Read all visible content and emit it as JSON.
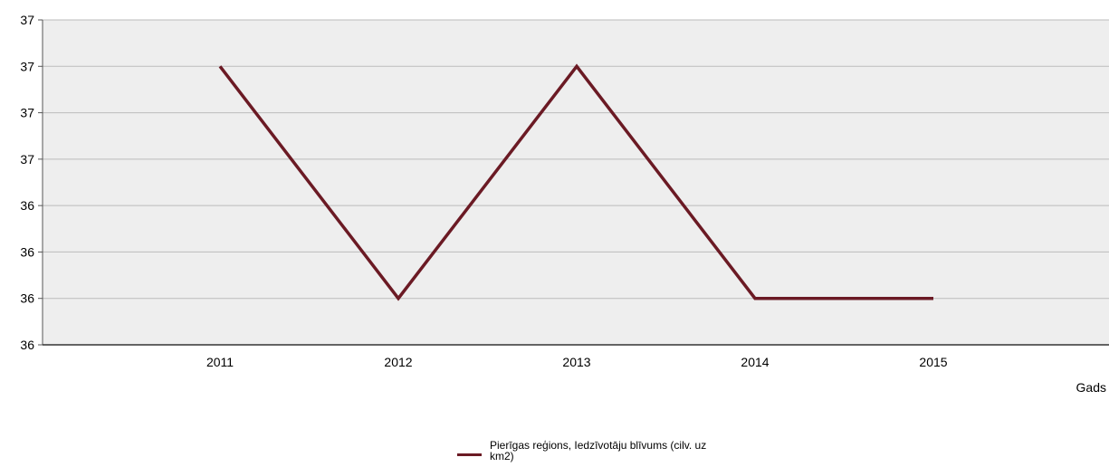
{
  "chart_data": {
    "type": "line",
    "x": [
      "2011",
      "2012",
      "2013",
      "2014",
      "2015"
    ],
    "series": [
      {
        "name": "Pierīgas reģions, Iedzīvotāju blīvums (cilv. uz km2)",
        "values": [
          36.9,
          36.4,
          36.9,
          36.4,
          36.4
        ],
        "color": "#6b1a24"
      }
    ],
    "ylim": [
      36.3,
      37.0
    ],
    "y_ticks": [
      37.0,
      36.9,
      36.8,
      36.7,
      36.6,
      36.5,
      36.4,
      36.3
    ],
    "y_tick_labels": [
      "37",
      "37",
      "37",
      "37",
      "36",
      "36",
      "36",
      "36"
    ],
    "xlabel": "Gads",
    "ylabel": "",
    "title": "",
    "grid": true,
    "legend_position": "bottom-center",
    "plot_background": "#eeeeee",
    "gridline_color": "#bbbbbb"
  }
}
